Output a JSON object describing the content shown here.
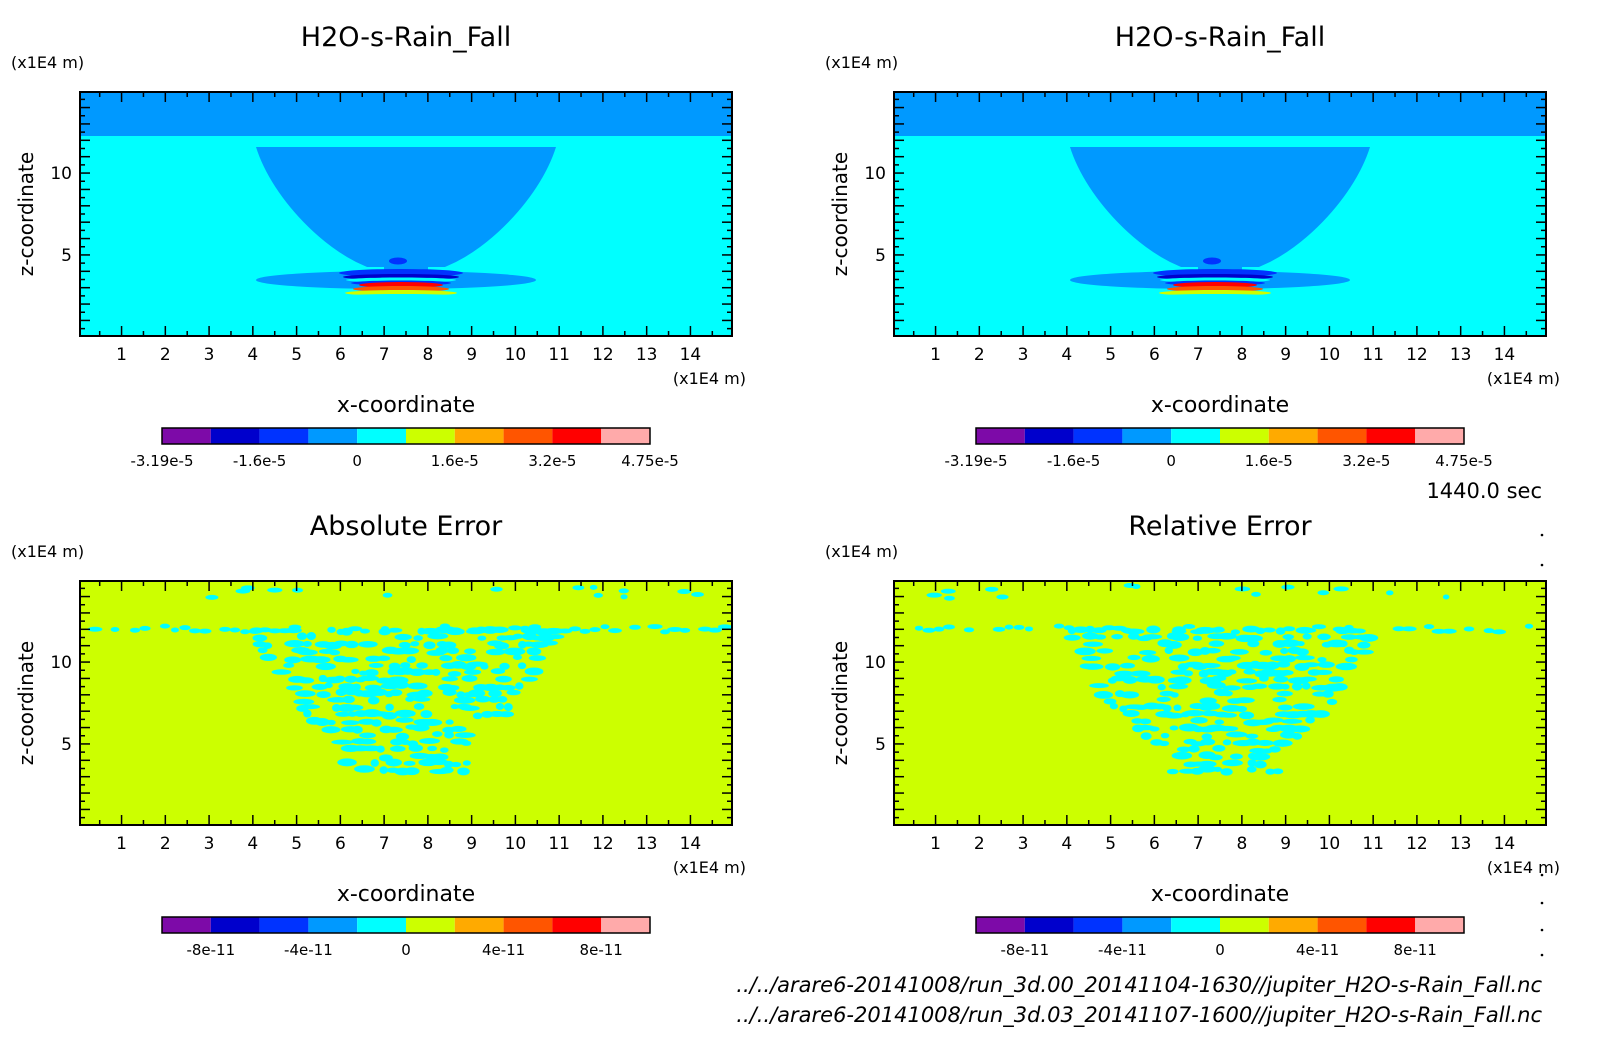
{
  "time_label": "1440.0 sec",
  "files": [
    "../../arare6-20141008/run_3d.00_20141104-1630//jupiter_H2O-s-Rain_Fall.nc",
    "../../arare6-20141008/run_3d.03_20141107-1600//jupiter_H2O-s-Rain_Fall.nc"
  ],
  "colors": {
    "levels": [
      "#7d0aa8",
      "#0000cc",
      "#0033ff",
      "#0099ff",
      "#00ffff",
      "#ccff00",
      "#ffaa00",
      "#ff5500",
      "#ff0000",
      "#ffaaaa"
    ]
  },
  "chart_data": [
    {
      "type": "heatmap",
      "title": "H2O-s-Rain_Fall",
      "xlabel": "x-coordinate",
      "ylabel": "z-coordinate",
      "x_unit": "(x1E4 m)",
      "y_unit": "(x1E4 m)",
      "xlim": [
        0.05,
        14.95
      ],
      "ylim": [
        0.05,
        14.95
      ],
      "xticks": [
        1,
        2,
        3,
        4,
        5,
        6,
        7,
        8,
        9,
        10,
        11,
        12,
        13,
        14
      ],
      "yticks": [
        5,
        10
      ],
      "colorbar_ticks": [
        "-3.19e-5",
        "-1.6e-5",
        "0",
        "1.6e-5",
        "3.2e-5",
        "4.75e-5"
      ]
    },
    {
      "type": "heatmap",
      "title": "H2O-s-Rain_Fall",
      "xlabel": "x-coordinate",
      "ylabel": "z-coordinate",
      "x_unit": "(x1E4 m)",
      "y_unit": "(x1E4 m)",
      "xlim": [
        0.05,
        14.95
      ],
      "ylim": [
        0.05,
        14.95
      ],
      "xticks": [
        1,
        2,
        3,
        4,
        5,
        6,
        7,
        8,
        9,
        10,
        11,
        12,
        13,
        14
      ],
      "yticks": [
        5,
        10
      ],
      "colorbar_ticks": [
        "-3.19e-5",
        "-1.6e-5",
        "0",
        "1.6e-5",
        "3.2e-5",
        "4.75e-5"
      ]
    },
    {
      "type": "heatmap",
      "title": "Absolute Error",
      "xlabel": "x-coordinate",
      "ylabel": "z-coordinate",
      "x_unit": "(x1E4 m)",
      "y_unit": "(x1E4 m)",
      "xlim": [
        0.05,
        14.95
      ],
      "ylim": [
        0.05,
        14.95
      ],
      "xticks": [
        1,
        2,
        3,
        4,
        5,
        6,
        7,
        8,
        9,
        10,
        11,
        12,
        13,
        14
      ],
      "yticks": [
        5,
        10
      ],
      "colorbar_ticks": [
        "-8e-11",
        "-4e-11",
        "0",
        "4e-11",
        "8e-11"
      ]
    },
    {
      "type": "heatmap",
      "title": "Relative Error",
      "xlabel": "x-coordinate",
      "ylabel": "z-coordinate",
      "x_unit": "(x1E4 m)",
      "y_unit": "(x1E4 m)",
      "xlim": [
        0.05,
        14.95
      ],
      "ylim": [
        0.05,
        14.95
      ],
      "xticks": [
        1,
        2,
        3,
        4,
        5,
        6,
        7,
        8,
        9,
        10,
        11,
        12,
        13,
        14
      ],
      "yticks": [
        5,
        10
      ],
      "colorbar_ticks": [
        "-8e-11",
        "-4e-11",
        "0",
        "4e-11",
        "8e-11"
      ]
    }
  ]
}
